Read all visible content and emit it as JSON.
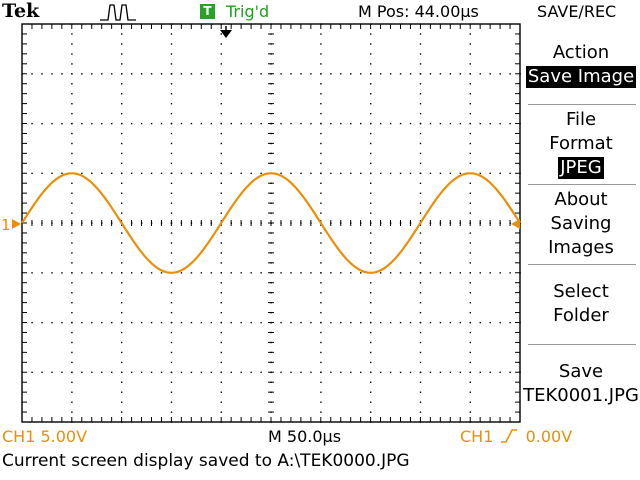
{
  "header": {
    "brand": "Tek",
    "trigger_badge": "T",
    "trigger_status": "Trig'd",
    "mpos": "M Pos: 44.00µs",
    "menu_title": "SAVE/REC"
  },
  "side_menu": [
    {
      "label": "Action",
      "value": "Save Image"
    },
    {
      "label": "File\nFormat",
      "value": "JPEG"
    },
    {
      "label": "About\nSaving\nImages"
    },
    {
      "label": "Select\nFolder"
    },
    {
      "label": "Save\nTEK0001.JPG"
    }
  ],
  "channel": {
    "marker": "1",
    "scale": "CH1  5.00V"
  },
  "timebase": "M 50.0µs",
  "trigger": {
    "source": "CH1",
    "slope_icon": "rising-edge-icon",
    "level": "0.00V"
  },
  "status_message": "Current screen display saved to A:\\TEK0000.JPG",
  "colors": {
    "ch1": "#e8900a",
    "trig": "#1f9e1f",
    "grid": "#000000"
  },
  "waveform": {
    "shape": "sine",
    "cycles_shown": 2.5,
    "amplitude_divisions": 2
  }
}
